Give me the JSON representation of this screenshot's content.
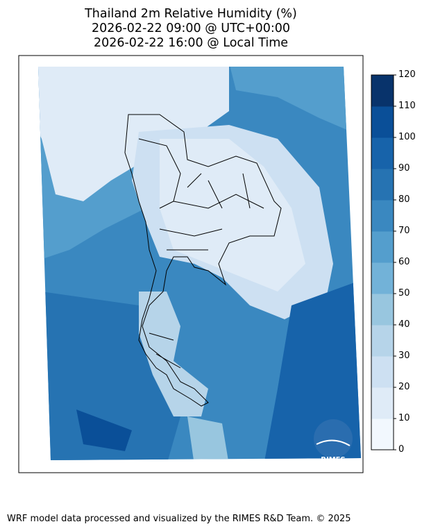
{
  "title": {
    "line1": "Thailand 2m Relative Humidity (%)",
    "line2": "2026-02-22 09:00 @ UTC+00:00",
    "line3": "2026-02-22 16:00 @ Local Time"
  },
  "colorbar": {
    "ticks": [
      "120",
      "110",
      "100",
      "90",
      "80",
      "70",
      "60",
      "50",
      "40",
      "30",
      "20",
      "10",
      "0"
    ],
    "colors": [
      "#f2f8fe",
      "#dfebf7",
      "#cde0f2",
      "#b6d4e9",
      "#98c6df",
      "#72b2d8",
      "#549ecd",
      "#3a88c0",
      "#2673b2",
      "#1763aa",
      "#0a4f98",
      "#08336b"
    ]
  },
  "logo": {
    "text": "RIMES"
  },
  "footer": "WRF model data processed and visualized by the RIMES R&D Team. © 2025"
}
